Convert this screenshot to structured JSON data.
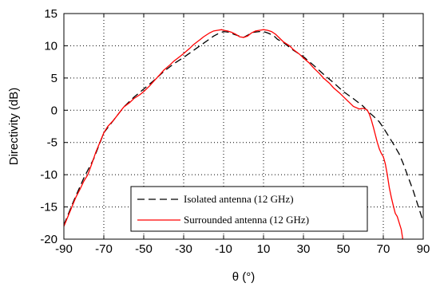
{
  "chart_data": {
    "type": "line",
    "xlabel": "θ (°)",
    "ylabel": "Directivity (dB)",
    "xlim": [
      -90,
      90
    ],
    "ylim": [
      -20,
      15
    ],
    "xticks": [
      -90,
      -70,
      -50,
      -30,
      -10,
      10,
      30,
      50,
      70,
      90
    ],
    "yticks": [
      -20,
      -15,
      -10,
      -5,
      0,
      5,
      10,
      15
    ],
    "grid": true,
    "legend_position": "bottom-center",
    "series": [
      {
        "name": "Isolated antenna (12 GHz)",
        "color": "#000000",
        "style": "dashed",
        "x": [
          -90,
          -85,
          -80,
          -75,
          -70,
          -65,
          -60,
          -55,
          -50,
          -45,
          -40,
          -35,
          -30,
          -25,
          -20,
          -15,
          -12,
          -10,
          -7,
          -5,
          -3,
          0,
          3,
          5,
          8,
          10,
          12,
          15,
          17,
          20,
          25,
          30,
          35,
          40,
          45,
          50,
          55,
          60,
          62,
          65,
          68,
          70,
          72,
          75,
          78,
          80,
          85,
          90
        ],
        "y": [
          -17.8,
          -14,
          -10.5,
          -7.5,
          -3.5,
          -1.5,
          0.5,
          2,
          3.3,
          4.6,
          6,
          7.2,
          8.2,
          9.3,
          10.4,
          11.5,
          12,
          12.2,
          12.1,
          11.8,
          11.6,
          11.3,
          11.8,
          12.1,
          12.2,
          12.2,
          12,
          11.6,
          11,
          10.5,
          9.3,
          8.3,
          7,
          5.6,
          4.3,
          2.9,
          1.8,
          0.6,
          -0.1,
          -0.9,
          -1.8,
          -2.7,
          -3.7,
          -5.2,
          -6.8,
          -8.3,
          -12.5,
          -17.3
        ]
      },
      {
        "name": "Surrounded antenna (12 GHz)",
        "color": "#ff0000",
        "style": "solid",
        "x": [
          -90,
          -88,
          -86,
          -84,
          -82,
          -80,
          -78,
          -76,
          -74,
          -72,
          -70,
          -68,
          -65,
          -62,
          -60,
          -57,
          -55,
          -52,
          -50,
          -47,
          -45,
          -42,
          -40,
          -37,
          -35,
          -32,
          -30,
          -27,
          -25,
          -22,
          -20,
          -17,
          -15,
          -13,
          -11,
          -10,
          -8,
          -6,
          -4,
          -2,
          0,
          2,
          4,
          6,
          8,
          10,
          12,
          14,
          16,
          18,
          20,
          23,
          25,
          28,
          30,
          33,
          35,
          38,
          40,
          43,
          45,
          48,
          50,
          53,
          55,
          58,
          60,
          61,
          62,
          63,
          64,
          65,
          66,
          67,
          68,
          69,
          70,
          71,
          72,
          73,
          74,
          75,
          76,
          77,
          78,
          79,
          80
        ],
        "y": [
          -18,
          -16.5,
          -15,
          -13.5,
          -12.3,
          -11,
          -10,
          -8.3,
          -6.5,
          -5,
          -3.5,
          -2.5,
          -1.5,
          -0.3,
          0.5,
          1.2,
          1.8,
          2.4,
          2.9,
          3.8,
          4.5,
          5.5,
          6.2,
          7,
          7.6,
          8.3,
          8.8,
          9.6,
          10.2,
          10.9,
          11.4,
          12,
          12.3,
          12.4,
          12.5,
          12.4,
          12.3,
          12.1,
          11.8,
          11.4,
          11.3,
          11.5,
          12,
          12.3,
          12.4,
          12.5,
          12.4,
          12.2,
          11.8,
          11.2,
          10.6,
          10,
          9.4,
          8.7,
          8.1,
          7.3,
          6.6,
          5.7,
          5,
          4.2,
          3.5,
          2.7,
          2.1,
          1.2,
          0.6,
          0.2,
          0.3,
          0.2,
          0.0,
          -0.6,
          -1.5,
          -2.6,
          -3.8,
          -5,
          -6,
          -6.7,
          -7.2,
          -8.3,
          -10,
          -12,
          -13.5,
          -14.8,
          -16,
          -16.5,
          -17.5,
          -18.5,
          -20.5
        ]
      }
    ]
  }
}
